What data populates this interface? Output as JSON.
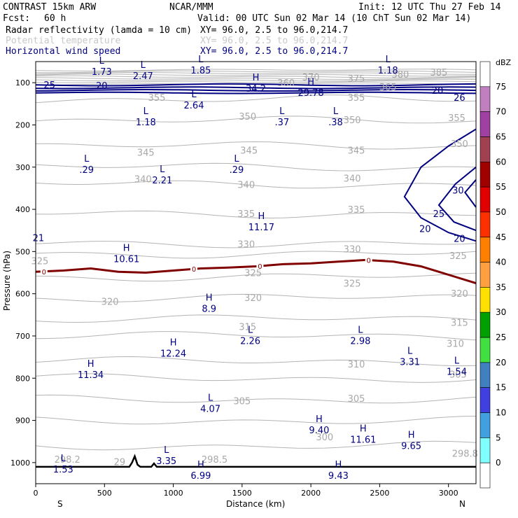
{
  "header": {
    "model": "CONTRAST 15km ARW",
    "center": "NCAR/MMM",
    "init": "Init: 12 UTC Thu 27 Feb 14",
    "fcst_label": "Fcst:",
    "fcst_value": "60 h",
    "valid": "Valid: 00 UTC Sun 02 Mar 14 (10 ChT Sun 02 Mar 14)"
  },
  "fields": [
    {
      "name": "Radar reflectivity (lamda = 10 cm)",
      "xy": "XY=  96.0,  2.5 to  96.0,214.7",
      "color": "#000000"
    },
    {
      "name": "Potential temperature",
      "xy": "XY=  96.0,  2.5 to  96.0,214.7",
      "color": "#c8c8c8"
    },
    {
      "name": "Horizontal wind speed",
      "xy": "XY=  96.0,  2.5 to  96.0,214.7",
      "color": "#000080"
    }
  ],
  "chart_data": {
    "type": "cross-section",
    "xlabel": "Distance (km)",
    "ylabel": "Pressure (hPa)",
    "xlim": [
      0,
      3200
    ],
    "ylim": [
      1050,
      50
    ],
    "x_ticks": [
      "0",
      "500",
      "1000",
      "1500",
      "2000",
      "2500",
      "3000"
    ],
    "x_tick_values": [
      0,
      500,
      1000,
      1500,
      2000,
      2500,
      3000
    ],
    "y_ticks": [
      "100",
      "200",
      "300",
      "400",
      "500",
      "600",
      "700",
      "800",
      "900",
      "1000"
    ],
    "y_tick_values": [
      100,
      200,
      300,
      400,
      500,
      600,
      700,
      800,
      900,
      1000
    ],
    "left_end": "S",
    "right_end": "N",
    "colorbar": {
      "unit": "dBZ",
      "levels": [
        "75",
        "70",
        "65",
        "60",
        "55",
        "50",
        "45",
        "40",
        "35",
        "30",
        "25",
        "20",
        "15",
        "10",
        "5",
        "0"
      ],
      "colors": [
        "#ffffff",
        "#c080c0",
        "#a040a0",
        "#a04050",
        "#a00000",
        "#e00000",
        "#ff3000",
        "#ff8000",
        "#ffa040",
        "#ffe000",
        "#00a000",
        "#40e040",
        "#4080c0",
        "#4040e0",
        "#40a0e0",
        "#80ffff",
        "#ffffff"
      ]
    },
    "freezing_level": {
      "label": "0",
      "points": [
        [
          0,
          548
        ],
        [
          200,
          545
        ],
        [
          400,
          540
        ],
        [
          600,
          548
        ],
        [
          800,
          550
        ],
        [
          1000,
          545
        ],
        [
          1200,
          540
        ],
        [
          1400,
          538
        ],
        [
          1600,
          535
        ],
        [
          1800,
          530
        ],
        [
          2000,
          528
        ],
        [
          2200,
          524
        ],
        [
          2400,
          520
        ],
        [
          2600,
          524
        ],
        [
          2800,
          535
        ],
        [
          3000,
          555
        ],
        [
          3200,
          575
        ]
      ],
      "label_x": [
        60,
        1150,
        1630,
        2420
      ]
    },
    "theta_labels": [
      {
        "text": "385",
        "x": 2930,
        "p": 83
      },
      {
        "text": "380",
        "x": 2650,
        "p": 88
      },
      {
        "text": "375",
        "x": 2330,
        "p": 98
      },
      {
        "text": "370",
        "x": 2000,
        "p": 95
      },
      {
        "text": "360",
        "x": 1820,
        "p": 108
      },
      {
        "text": "365",
        "x": 2560,
        "p": 118
      },
      {
        "text": "355",
        "x": 880,
        "p": 143
      },
      {
        "text": "355",
        "x": 2330,
        "p": 143
      },
      {
        "text": "350",
        "x": 1540,
        "p": 188
      },
      {
        "text": "350",
        "x": 2300,
        "p": 196
      },
      {
        "text": "355",
        "x": 3060,
        "p": 191
      },
      {
        "text": "350",
        "x": 3080,
        "p": 252
      },
      {
        "text": "345",
        "x": 800,
        "p": 273
      },
      {
        "text": "345",
        "x": 1550,
        "p": 268
      },
      {
        "text": "345",
        "x": 2330,
        "p": 268
      },
      {
        "text": "340",
        "x": 780,
        "p": 336
      },
      {
        "text": "340",
        "x": 1530,
        "p": 349
      },
      {
        "text": "340",
        "x": 2300,
        "p": 334
      },
      {
        "text": "335",
        "x": 1530,
        "p": 418
      },
      {
        "text": "335",
        "x": 2330,
        "p": 408
      },
      {
        "text": "330",
        "x": 1530,
        "p": 490
      },
      {
        "text": "330",
        "x": 2300,
        "p": 502
      },
      {
        "text": "325",
        "x": 30,
        "p": 530
      },
      {
        "text": "325",
        "x": 1580,
        "p": 558
      },
      {
        "text": "325",
        "x": 2300,
        "p": 583
      },
      {
        "text": "325",
        "x": 3070,
        "p": 518
      },
      {
        "text": "320",
        "x": 540,
        "p": 626
      },
      {
        "text": "320",
        "x": 1580,
        "p": 617
      },
      {
        "text": "320",
        "x": 3080,
        "p": 607
      },
      {
        "text": "315",
        "x": 1540,
        "p": 686
      },
      {
        "text": "315",
        "x": 3080,
        "p": 676
      },
      {
        "text": "310",
        "x": 3050,
        "p": 726
      },
      {
        "text": "310",
        "x": 2330,
        "p": 775
      },
      {
        "text": "305",
        "x": 1500,
        "p": 862
      },
      {
        "text": "305",
        "x": 2330,
        "p": 856
      },
      {
        "text": "305",
        "x": 3070,
        "p": 799
      },
      {
        "text": "300",
        "x": 2100,
        "p": 947
      },
      {
        "text": "298.5",
        "x": 1300,
        "p": 1000
      },
      {
        "text": "298.2",
        "x": 230,
        "p": 1000
      },
      {
        "text": "29",
        "x": 610,
        "p": 1006
      },
      {
        "text": "298.8",
        "x": 3120,
        "p": 986
      }
    ],
    "wind_speed_labels": [
      {
        "text": "25",
        "x": 100,
        "p": 113
      },
      {
        "text": "20",
        "x": 480,
        "p": 115
      },
      {
        "text": "20",
        "x": 2920,
        "p": 126
      },
      {
        "text": "25",
        "x": 2930,
        "p": 418
      },
      {
        "text": "30",
        "x": 3070,
        "p": 363
      },
      {
        "text": "20",
        "x": 2830,
        "p": 454
      },
      {
        "text": "20",
        "x": 3080,
        "p": 477
      },
      {
        "text": "21",
        "x": 20,
        "p": 475
      },
      {
        "text": "26",
        "x": 3080,
        "p": 143
      }
    ],
    "extrema": [
      {
        "type": "L",
        "value": "1.73",
        "x": 480,
        "p": 68
      },
      {
        "type": "L",
        "value": "2.47",
        "x": 780,
        "p": 78
      },
      {
        "type": "L",
        "value": "1.85",
        "x": 1200,
        "p": 65
      },
      {
        "type": "L",
        "value": "1.18",
        "x": 2560,
        "p": 65
      },
      {
        "type": "H",
        "value": "34.2",
        "x": 1600,
        "p": 108
      },
      {
        "type": "H",
        "value": "29.78",
        "x": 2000,
        "p": 118
      },
      {
        "type": "L",
        "value": "2.64",
        "x": 1150,
        "p": 148
      },
      {
        "type": "L",
        "value": "1.18",
        "x": 800,
        "p": 188
      },
      {
        "type": "L",
        "value": ".37",
        "x": 1790,
        "p": 188
      },
      {
        "type": "L",
        "value": ".38",
        "x": 2180,
        "p": 188
      },
      {
        "type": "L",
        "value": ".29",
        "x": 370,
        "p": 300
      },
      {
        "type": "L",
        "value": "2.21",
        "x": 920,
        "p": 325
      },
      {
        "type": "L",
        "value": ".29",
        "x": 1460,
        "p": 300
      },
      {
        "type": "H",
        "value": "11.17",
        "x": 1640,
        "p": 436
      },
      {
        "type": "H",
        "value": "10.61",
        "x": 660,
        "p": 512
      },
      {
        "type": "H",
        "value": "8.9",
        "x": 1260,
        "p": 630
      },
      {
        "type": "L",
        "value": "2.26",
        "x": 1560,
        "p": 706
      },
      {
        "type": "L",
        "value": "2.98",
        "x": 2360,
        "p": 706
      },
      {
        "type": "H",
        "value": "12.24",
        "x": 1000,
        "p": 736
      },
      {
        "type": "L",
        "value": "3.31",
        "x": 2720,
        "p": 756
      },
      {
        "type": "H",
        "value": "11.34",
        "x": 400,
        "p": 786
      },
      {
        "type": "L",
        "value": "1.54",
        "x": 3060,
        "p": 779
      },
      {
        "type": "L",
        "value": "4.07",
        "x": 1270,
        "p": 867
      },
      {
        "type": "H",
        "value": "9.40",
        "x": 2060,
        "p": 917
      },
      {
        "type": "H",
        "value": "11.61",
        "x": 2380,
        "p": 940
      },
      {
        "type": "H",
        "value": "9.65",
        "x": 2730,
        "p": 955
      },
      {
        "type": "L",
        "value": "1.53",
        "x": 200,
        "p": 1010
      },
      {
        "type": "L",
        "value": "3.35",
        "x": 950,
        "p": 990
      },
      {
        "type": "H",
        "value": "6.99",
        "x": 1200,
        "p": 1025
      },
      {
        "type": "H",
        "value": "9.43",
        "x": 2200,
        "p": 1025
      }
    ],
    "terrain": [
      [
        0,
        1010
      ],
      [
        680,
        1010
      ],
      [
        700,
        1000
      ],
      [
        720,
        985
      ],
      [
        740,
        1005
      ],
      [
        760,
        1010
      ],
      [
        840,
        1010
      ],
      [
        860,
        1002
      ],
      [
        880,
        1010
      ],
      [
        3200,
        1010
      ]
    ]
  }
}
